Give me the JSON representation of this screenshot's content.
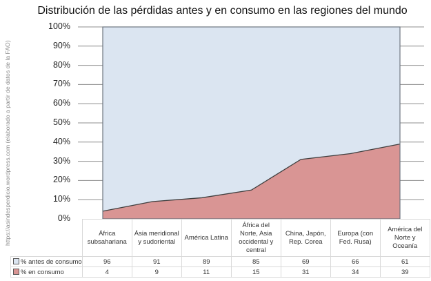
{
  "chart_data": {
    "type": "area",
    "stacked": true,
    "percent_stacked": true,
    "title": "Distribución de las pérdidas antes y en consumo en las regiones del mundo",
    "xlabel": "",
    "ylabel": "",
    "ylim": [
      0,
      100
    ],
    "yticks": [
      "0%",
      "10%",
      "20%",
      "30%",
      "40%",
      "50%",
      "60%",
      "70%",
      "80%",
      "90%",
      "100%"
    ],
    "grid": true,
    "legend_position": "data-table",
    "categories": [
      "África subsahariana",
      "Ásia meridional y sudoriental",
      "América Latina",
      "África del Norte, Asia occidental y central",
      "China, Japón, Rep. Corea",
      "Europa (con Fed. Rusa)",
      "América del Norte y Oceanía"
    ],
    "series": [
      {
        "name": "% en consumo",
        "color": "#d99594",
        "values": [
          4,
          9,
          11,
          15,
          31,
          34,
          39
        ]
      },
      {
        "name": "% antes de consumo",
        "color": "#dbe5f1",
        "values": [
          96,
          91,
          89,
          85,
          69,
          66,
          61
        ]
      }
    ],
    "annotations": [
      "https://asindesperdicio.wordpress.com (elaborado a partir de datos de la FAO)"
    ]
  },
  "title": "Distribución de las pérdidas antes y en consumo en las regiones del mundo",
  "side_note": "https://asindesperdicio.wordpress.com (elaborado a partir de datos de la FAO)",
  "yticks": [
    "100%",
    "90%",
    "80%",
    "70%",
    "60%",
    "50%",
    "40%",
    "30%",
    "20%",
    "10%",
    "0%"
  ],
  "table": {
    "headers": [
      [
        "África",
        "subsahariana"
      ],
      [
        "Ásia meridional",
        "y sudoriental"
      ],
      [
        "América Latina"
      ],
      [
        "África del",
        "Norte, Asia",
        "occidental y",
        "central"
      ],
      [
        "China, Japón,",
        "Rep. Corea"
      ],
      [
        "Europa (con",
        "Fed. Rusa)"
      ],
      [
        "América del",
        "Norte y",
        "Oceanía"
      ]
    ],
    "rows": [
      {
        "label": "% antes de consumo",
        "values": [
          "96",
          "91",
          "89",
          "85",
          "69",
          "66",
          "61"
        ]
      },
      {
        "label": "% en consumo",
        "values": [
          "4",
          "9",
          "11",
          "15",
          "31",
          "34",
          "39"
        ]
      }
    ]
  },
  "colors": {
    "before": "#dbe5f1",
    "in_consumption": "#d99594",
    "gridline": "#8c8c8c",
    "line": "#3f3f3f"
  }
}
